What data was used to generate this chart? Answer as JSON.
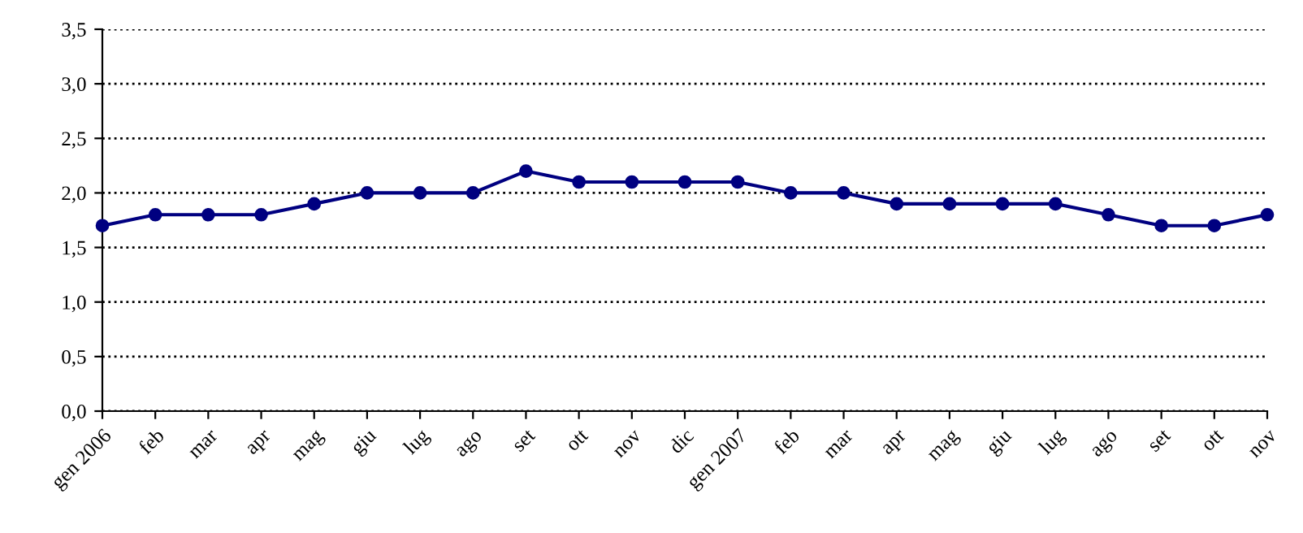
{
  "chart_data": {
    "type": "line",
    "categories": [
      "gen 2006",
      "feb",
      "mar",
      "apr",
      "mag",
      "giu",
      "lug",
      "ago",
      "set",
      "ott",
      "nov",
      "dic",
      "gen 2007",
      "feb",
      "mar",
      "apr",
      "mag",
      "giu",
      "lug",
      "ago",
      "set",
      "ott",
      "nov"
    ],
    "series": [
      {
        "color": "#000080",
        "values": [
          1.7,
          1.8,
          1.8,
          1.8,
          1.9,
          2.0,
          2.0,
          2.0,
          2.2,
          2.1,
          2.1,
          2.1,
          2.1,
          2.0,
          2.0,
          1.9,
          1.9,
          1.9,
          1.9,
          1.8,
          1.7,
          1.7,
          1.8
        ]
      }
    ],
    "ylim": [
      0,
      3.5
    ],
    "yticks": [
      {
        "value": 0,
        "label": "0,0"
      },
      {
        "value": 0.5,
        "label": "0,5"
      },
      {
        "value": 1,
        "label": "1,0"
      },
      {
        "value": 1.5,
        "label": "1,5"
      },
      {
        "value": 2,
        "label": "2,0"
      },
      {
        "value": 2.5,
        "label": "2,5"
      },
      {
        "value": 3,
        "label": "3,0"
      },
      {
        "value": 3.5,
        "label": "3,5"
      }
    ],
    "grid": "y",
    "marker": "circle",
    "line_style": "solid",
    "legend": false
  }
}
